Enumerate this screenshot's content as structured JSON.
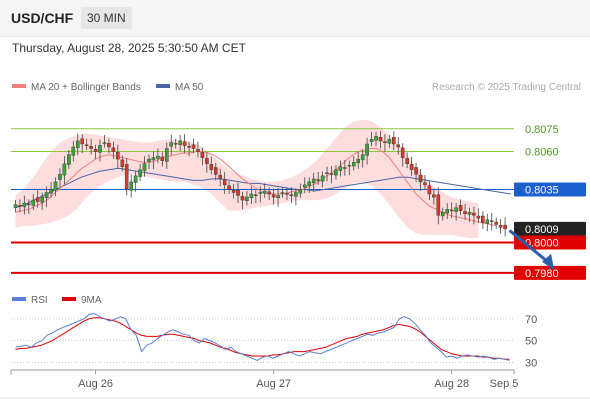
{
  "header": {
    "symbol": "USD/CHF",
    "timeframe": "30 MIN"
  },
  "datetime": "Thursday, August 28, 2025 5:30:50 AM CET",
  "attribution": "Research © 2025 Trading Central",
  "colors": {
    "ma20": "#f08080",
    "ma50": "#4a64a8",
    "bands": "#fcd2d2",
    "support": "#e00000",
    "resistance": "#8cc63f",
    "pivot": "#1a5fd0",
    "current": "#222222",
    "rsi": "#5a7fd8",
    "rsi_ma": "#e00000",
    "arrow": "#2a5ea8",
    "candle_up": "#3aa335",
    "candle_down": "#d43a2a"
  },
  "chart_data": [
    {
      "type": "candlestick",
      "legend": [
        {
          "label": "MA 20 + Bollinger Bands",
          "color": "#f08080"
        },
        {
          "label": "MA 50",
          "color": "#4a64a8"
        }
      ],
      "legend_position": "top-left",
      "ylim": [
        0.7972,
        0.8094
      ],
      "x_ticks": [
        {
          "label": "Aug 26",
          "at": 18
        },
        {
          "label": "Aug 27",
          "at": 58
        },
        {
          "label": "Aug 28",
          "at": 98
        },
        {
          "label": "Sep 5",
          "at": 112
        }
      ],
      "xlim": [
        -1,
        112
      ],
      "close": [
        0.8025,
        0.8024,
        0.8026,
        0.8025,
        0.8028,
        0.8027,
        0.803,
        0.8033,
        0.8035,
        0.804,
        0.8045,
        0.8052,
        0.8058,
        0.8063,
        0.8067,
        0.8065,
        0.8064,
        0.8062,
        0.806,
        0.8064,
        0.8066,
        0.8063,
        0.806,
        0.8055,
        0.805,
        0.8035,
        0.804,
        0.8044,
        0.8048,
        0.8052,
        0.8055,
        0.8056,
        0.8057,
        0.8054,
        0.8062,
        0.8066,
        0.8065,
        0.8067,
        0.8064,
        0.8063,
        0.8062,
        0.806,
        0.8056,
        0.8052,
        0.8048,
        0.8045,
        0.8042,
        0.8038,
        0.8035,
        0.8033,
        0.8031,
        0.8028,
        0.803,
        0.8032,
        0.8031,
        0.8033,
        0.8034,
        0.8032,
        0.803,
        0.8031,
        0.8033,
        0.8032,
        0.8031,
        0.8033,
        0.8035,
        0.8038,
        0.804,
        0.8042,
        0.8041,
        0.8044,
        0.8046,
        0.8045,
        0.8048,
        0.805,
        0.8049,
        0.8051,
        0.8053,
        0.8055,
        0.8058,
        0.8065,
        0.8068,
        0.807,
        0.8067,
        0.8066,
        0.8068,
        0.8065,
        0.8063,
        0.8056,
        0.8052,
        0.8048,
        0.8045,
        0.804,
        0.8038,
        0.8032,
        0.803,
        0.8018,
        0.802,
        0.8022,
        0.8021,
        0.8023,
        0.8021,
        0.8019,
        0.802,
        0.8018,
        0.8016,
        0.8013,
        0.8015,
        0.8014,
        0.8012,
        0.801,
        0.8009
      ],
      "series": [
        {
          "name": "MA 50",
          "values": [
            0.8023,
            0.8025,
            0.8028,
            0.8031,
            0.8034,
            0.8037,
            0.804,
            0.8043,
            0.8045,
            0.8047,
            0.8048,
            0.8049,
            0.8048,
            0.8047,
            0.8046,
            0.8045,
            0.8044,
            0.8043,
            0.8042,
            0.8041,
            0.8041,
            0.8042,
            0.8042,
            0.8041,
            0.804,
            0.8039,
            0.8039,
            0.8038,
            0.8037,
            0.8036,
            0.8035,
            0.8035,
            0.8034,
            0.8035,
            0.8036,
            0.8037,
            0.8038,
            0.8039,
            0.804,
            0.8041,
            0.8042,
            0.8043,
            0.8043,
            0.8042,
            0.8041,
            0.804,
            0.8039,
            0.8038,
            0.8037,
            0.8036,
            0.8035,
            0.8034,
            0.8033,
            0.8032
          ]
        },
        {
          "name": "MA 20",
          "values": [
            0.802,
            0.8021,
            0.8022,
            0.8024,
            0.8026,
            0.8029,
            0.8033,
            0.8037,
            0.8041,
            0.8045,
            0.8049,
            0.8052,
            0.8055,
            0.8057,
            0.8058,
            0.8057,
            0.8056,
            0.8055,
            0.8054,
            0.8053,
            0.8053,
            0.8054,
            0.8056,
            0.8057,
            0.8058,
            0.8059,
            0.8059,
            0.806,
            0.806,
            0.8059,
            0.8057,
            0.8054,
            0.805,
            0.8046,
            0.8042,
            0.8039,
            0.8036,
            0.8033,
            0.8032,
            0.8032,
            0.8032,
            0.8033,
            0.8034,
            0.8035,
            0.8037,
            0.8039,
            0.8042,
            0.8045,
            0.8048,
            0.8052,
            0.8056,
            0.8059,
            0.8061,
            0.8062,
            0.8062,
            0.806,
            0.8056,
            0.805,
            0.8044,
            0.8038,
            0.8032,
            0.8028,
            0.8024,
            0.8022,
            0.802,
            0.8018,
            0.8017,
            0.8016,
            0.8015,
            0.8014,
            0.8013,
            0.8012,
            0.8011
          ]
        },
        {
          "name": "Bollinger Upper",
          "values": [
            0.8031,
            0.8036,
            0.8043,
            0.8052,
            0.806,
            0.8066,
            0.8069,
            0.8071,
            0.8072,
            0.8071,
            0.807,
            0.8069,
            0.8068,
            0.8067,
            0.8066,
            0.8066,
            0.8067,
            0.8068,
            0.8068,
            0.8067,
            0.8066,
            0.8063,
            0.8058,
            0.8053,
            0.8048,
            0.8045,
            0.8043,
            0.8041,
            0.804,
            0.804,
            0.8041,
            0.8043,
            0.8046,
            0.805,
            0.8055,
            0.8062,
            0.8069,
            0.8076,
            0.808,
            0.8081,
            0.808,
            0.8076,
            0.8071,
            0.8065,
            0.8058,
            0.805,
            0.8043,
            0.8037,
            0.8033,
            0.803,
            0.8028,
            0.8027,
            0.8026
          ]
        },
        {
          "name": "Bollinger Lower",
          "values": [
            0.801,
            0.8011,
            0.8011,
            0.8012,
            0.8013,
            0.8015,
            0.8018,
            0.8023,
            0.803,
            0.8035,
            0.8039,
            0.8042,
            0.8044,
            0.8045,
            0.8044,
            0.8043,
            0.8042,
            0.8041,
            0.804,
            0.804,
            0.8038,
            0.8036,
            0.8032,
            0.8026,
            0.8021,
            0.8021,
            0.8022,
            0.8023,
            0.8024,
            0.8025,
            0.8026,
            0.8027,
            0.8028,
            0.8028,
            0.8028,
            0.8029,
            0.8032,
            0.8036,
            0.8039,
            0.804,
            0.8037,
            0.8032,
            0.8025,
            0.8017,
            0.801,
            0.8006,
            0.8005,
            0.8005,
            0.8005,
            0.8005,
            0.8004,
            0.8003,
            0.8003
          ]
        }
      ],
      "levels": [
        {
          "value": 0.8075,
          "label": "0.8075",
          "kind": "resistance"
        },
        {
          "value": 0.806,
          "label": "0.8060",
          "kind": "resistance"
        },
        {
          "value": 0.8035,
          "label": "0.8035",
          "kind": "pivot"
        },
        {
          "value": 0.8009,
          "label": "0.8009",
          "kind": "current"
        },
        {
          "value": 0.8,
          "label": "0.8000",
          "kind": "support"
        },
        {
          "value": 0.798,
          "label": "0.7980",
          "kind": "support"
        }
      ],
      "forecast_arrow": {
        "from": [
          111,
          0.8008
        ],
        "to": [
          121,
          0.7982
        ]
      }
    },
    {
      "type": "line",
      "legend": [
        {
          "label": "RSI",
          "color": "#5a7fd8"
        },
        {
          "label": "9MA",
          "color": "#e00000"
        }
      ],
      "legend_position": "top-left",
      "ylim": [
        25,
        80
      ],
      "y_ticks": [
        70,
        50,
        30
      ],
      "xlim": [
        -1,
        112
      ],
      "series": [
        {
          "name": "RSI",
          "values": [
            44,
            45,
            46,
            44,
            48,
            50,
            55,
            57,
            60,
            62,
            64,
            66,
            68,
            70,
            74,
            75,
            72,
            70,
            68,
            70,
            72,
            70,
            60,
            55,
            40,
            46,
            48,
            52,
            55,
            58,
            60,
            58,
            56,
            55,
            50,
            48,
            52,
            50,
            48,
            45,
            42,
            44,
            40,
            38,
            36,
            34,
            32,
            35,
            36,
            34,
            36,
            38,
            40,
            38,
            36,
            38,
            40,
            39,
            38,
            40,
            42,
            44,
            46,
            48,
            50,
            52,
            54,
            56,
            55,
            57,
            58,
            60,
            62,
            70,
            72,
            70,
            66,
            60,
            55,
            48,
            44,
            40,
            35,
            36,
            34,
            36,
            37,
            36,
            35,
            36,
            35,
            33,
            34,
            33,
            32
          ]
        },
        {
          "name": "9MA",
          "values": [
            42,
            43,
            43,
            44,
            45,
            46,
            48,
            50,
            53,
            56,
            59,
            62,
            65,
            68,
            70,
            71,
            71,
            70,
            69,
            68,
            66,
            63,
            60,
            57,
            55,
            54,
            54,
            54,
            55,
            56,
            56,
            55,
            54,
            53,
            52,
            50,
            49,
            48,
            46,
            44,
            43,
            41,
            39,
            38,
            37,
            36,
            36,
            36,
            36,
            37,
            37,
            38,
            39,
            40,
            40,
            40,
            41,
            42,
            43,
            44,
            46,
            48,
            50,
            52,
            53,
            54,
            56,
            57,
            58,
            59,
            60,
            62,
            64,
            65,
            64,
            63,
            61,
            58,
            54,
            50,
            46,
            42,
            40,
            38,
            37,
            36,
            36,
            36,
            36,
            35,
            35,
            34,
            34,
            33,
            33
          ]
        }
      ]
    }
  ]
}
